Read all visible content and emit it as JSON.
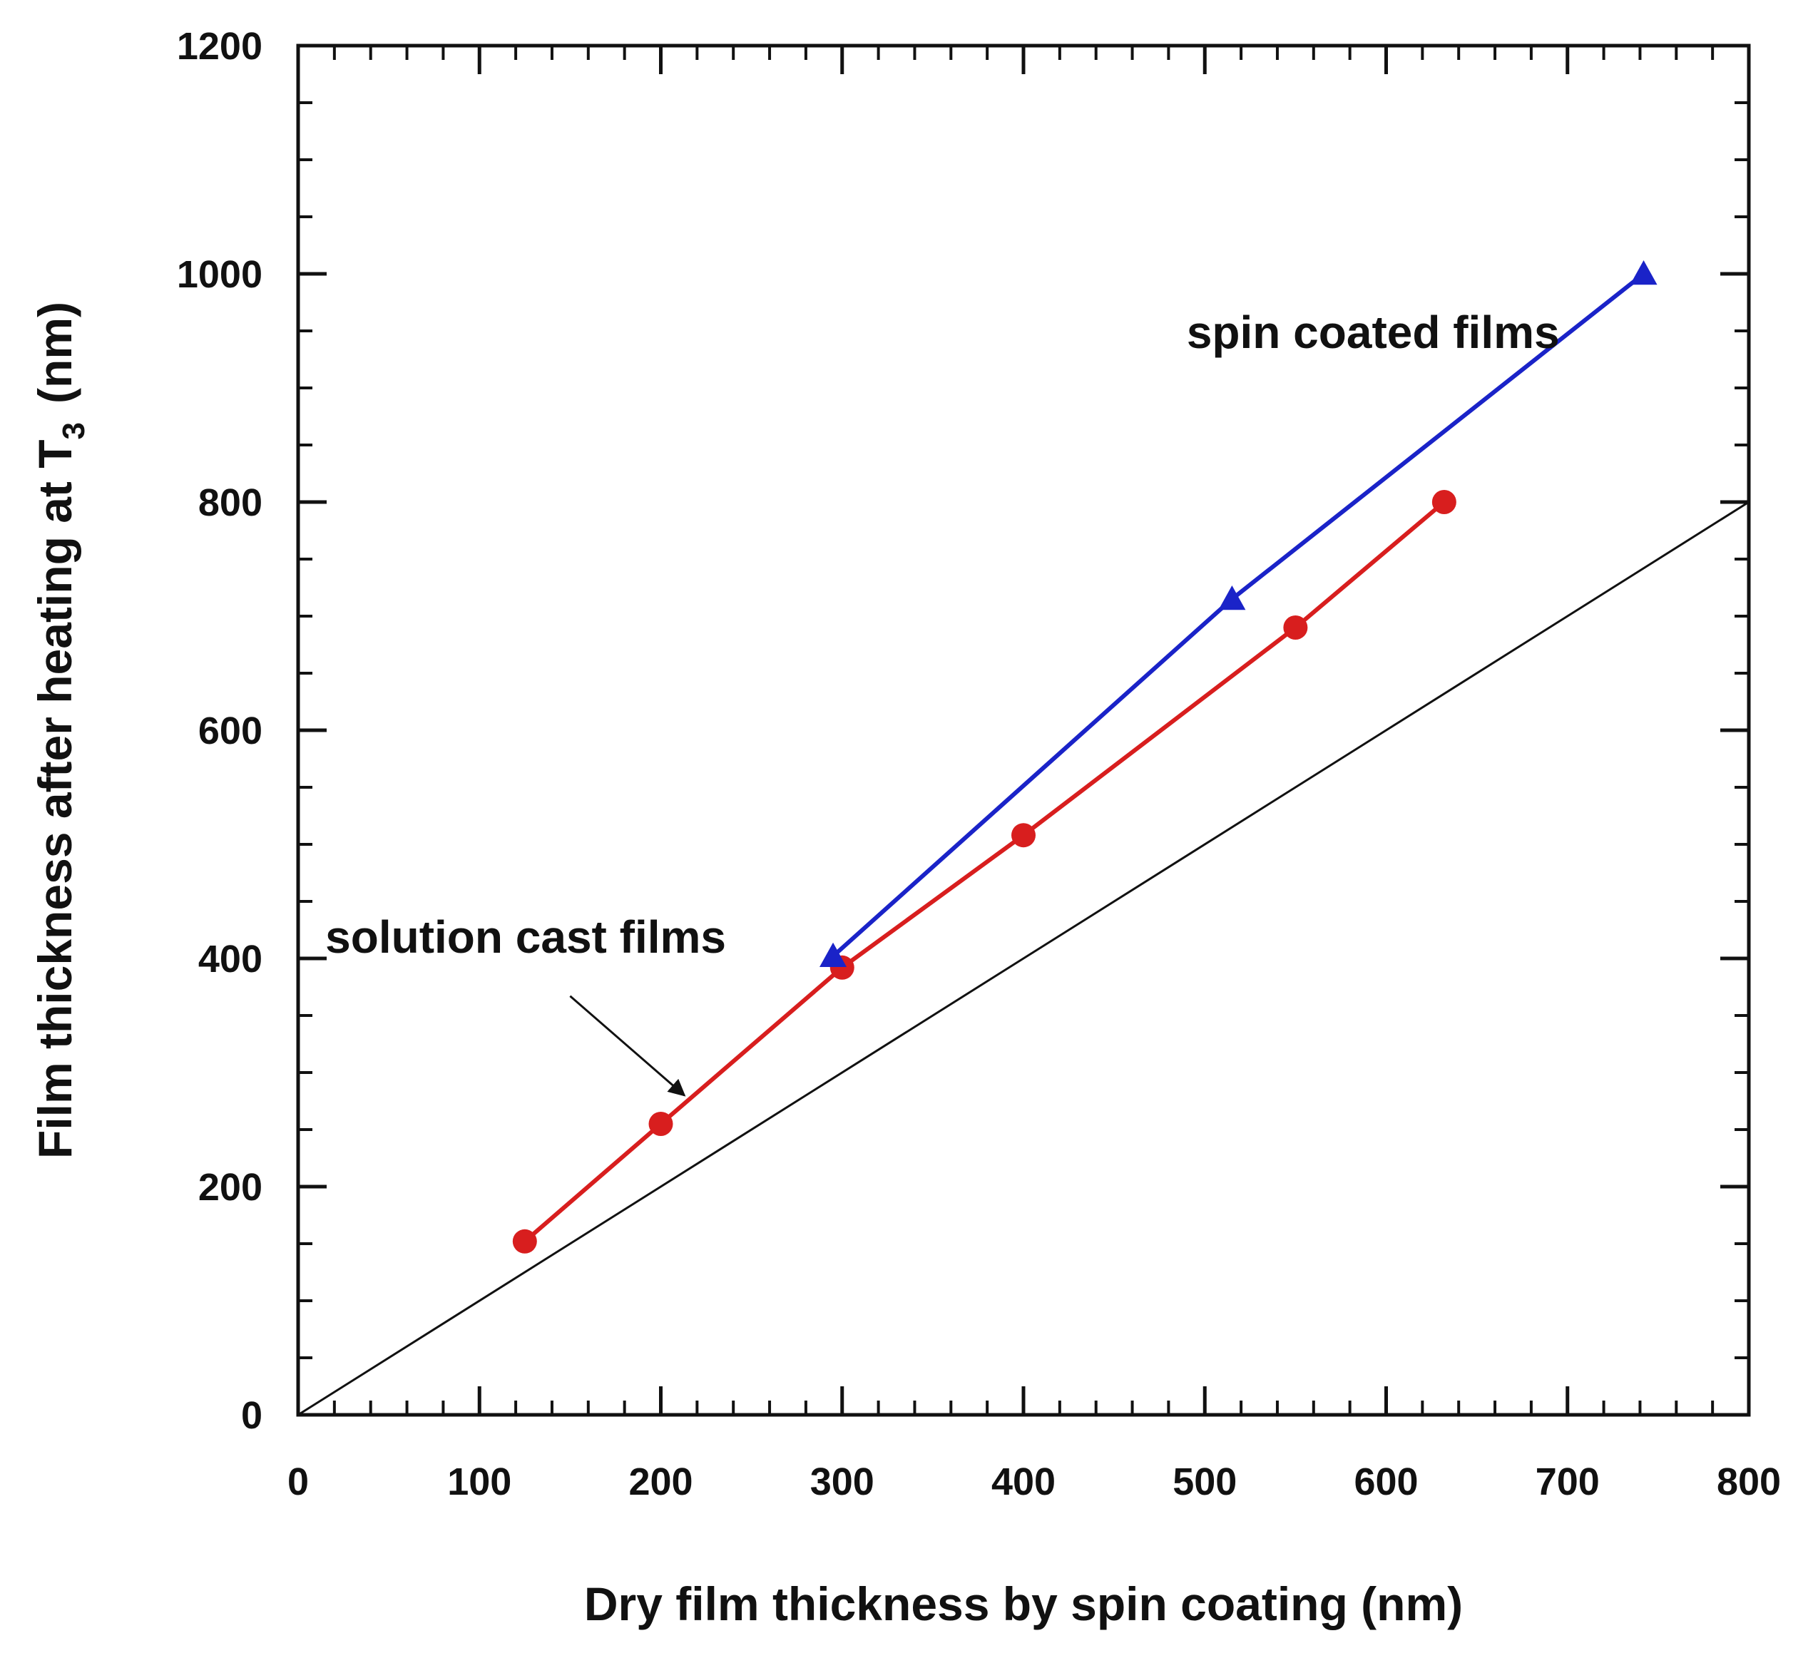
{
  "chart_data": {
    "type": "line",
    "xlabel": "Dry film thickness by spin coating (nm)",
    "ylabel": "Film thickness after heating at T",
    "ylabel_subscript": "3",
    "ylabel_unit": "(nm)",
    "xlim": [
      0,
      800
    ],
    "ylim": [
      0,
      1200
    ],
    "x_ticks": [
      0,
      100,
      200,
      300,
      400,
      500,
      600,
      700,
      800
    ],
    "y_ticks": [
      0,
      200,
      400,
      600,
      800,
      1000,
      1200
    ],
    "x_tick_labels": [
      "0",
      "100",
      "200",
      "300",
      "400",
      "500",
      "600",
      "700",
      "800"
    ],
    "y_tick_labels": [
      "0",
      "200",
      "400",
      "600",
      "800",
      "1000",
      "1200"
    ],
    "x_minor_step": 20,
    "y_minor_step": 50,
    "grid": false,
    "series": [
      {
        "name": "solution cast films",
        "color": "#d81e1e",
        "marker": "circle",
        "x": [
          125,
          200,
          300,
          400,
          550,
          632
        ],
        "y": [
          152,
          255,
          392,
          508,
          690,
          800
        ]
      },
      {
        "name": "spin coated films",
        "color": "#1a23c8",
        "marker": "triangle",
        "x": [
          295,
          515,
          742
        ],
        "y": [
          402,
          715,
          1000
        ]
      },
      {
        "name": "y = x reference",
        "color": "#111111",
        "marker": "none",
        "x": [
          0,
          800
        ],
        "y": [
          0,
          800
        ]
      }
    ],
    "annotations": [
      {
        "text": "spin coated films",
        "x": 490,
        "y": 935
      },
      {
        "text": "solution cast films",
        "x": 15,
        "y": 405,
        "arrow_to": [
          213,
          280
        ],
        "arrow_from": [
          150,
          367
        ]
      }
    ]
  }
}
